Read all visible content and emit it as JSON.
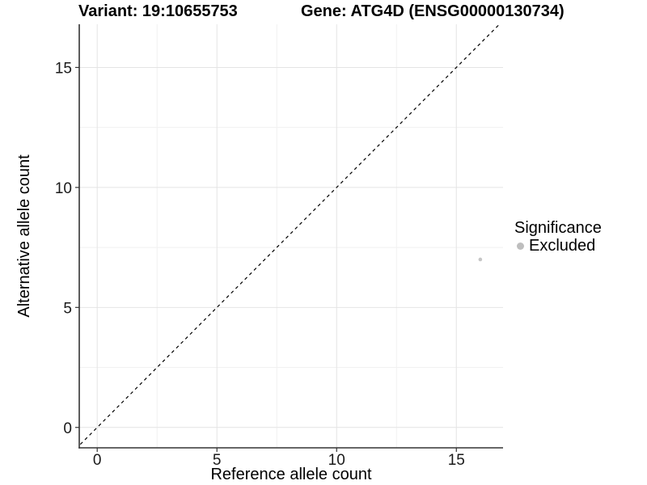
{
  "titles": {
    "variant": "Variant: 19:10655753",
    "gene": "Gene: ATG4D (ENSG00000130734)"
  },
  "legend": {
    "title": "Significance",
    "items": [
      {
        "label": "Excluded",
        "color": "#bebebe"
      }
    ]
  },
  "chart_data": {
    "type": "scatter",
    "title": "Variant: 19:10655753   Gene: ATG4D (ENSG00000130734)",
    "xlabel": "Reference allele count",
    "ylabel": "Alternative allele count",
    "xlim": [
      -0.75,
      16.95
    ],
    "ylim": [
      -0.85,
      16.8
    ],
    "x_ticks": [
      0,
      5,
      10,
      15
    ],
    "y_ticks": [
      0,
      5,
      10,
      15
    ],
    "x_minor_ticks": [
      2.5,
      7.5,
      12.5
    ],
    "y_minor_ticks": [
      2.5,
      7.5,
      12.5
    ],
    "grid": true,
    "legend_position": "right",
    "reference_line": {
      "type": "identity",
      "slope": 1,
      "intercept": 0,
      "style": "dashed",
      "color": "#000000"
    },
    "series": [
      {
        "name": "Excluded",
        "color": "#c6c6c6",
        "points": [
          {
            "x": 16,
            "y": 7
          }
        ]
      }
    ],
    "colors": {
      "grid_major": "#e4e4e4",
      "grid_minor": "#f1f1f1",
      "axis_line": "#333333",
      "tick_text": "#1a1a1a"
    }
  }
}
